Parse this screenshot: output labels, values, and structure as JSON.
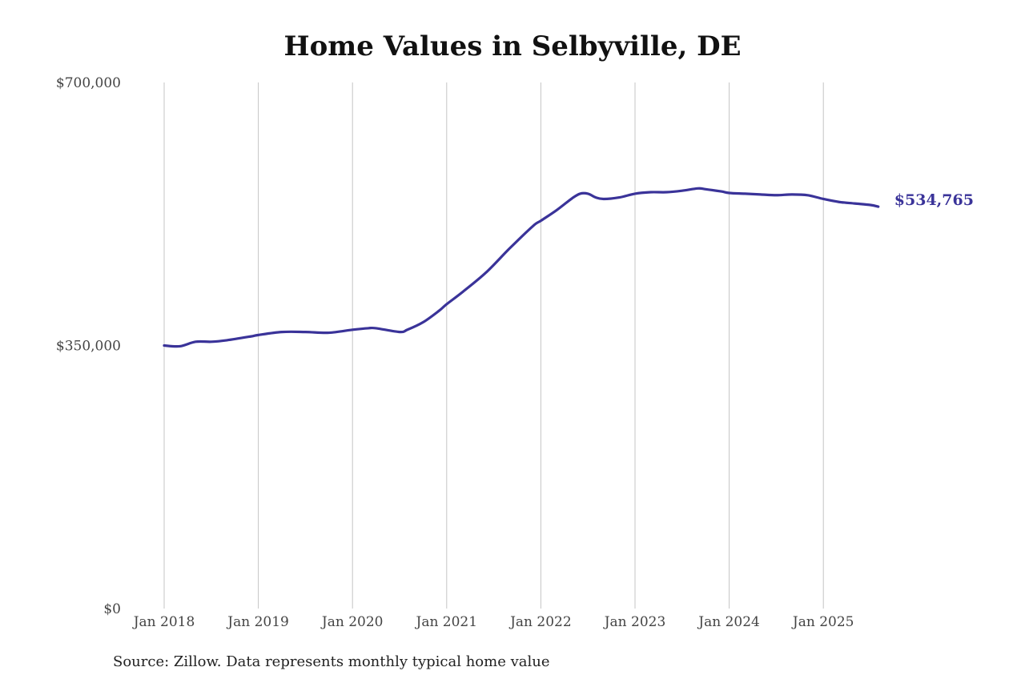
{
  "chart_data": {
    "type": "line",
    "title": "Home Values in Selbyville, DE",
    "source": "Source: Zillow. Data represents monthly typical home value",
    "xlabel": "",
    "ylabel": "",
    "ylim": [
      0,
      700000
    ],
    "yticks": [
      0,
      350000,
      700000
    ],
    "ytick_labels": [
      "$0",
      "$350,000",
      "$700,000"
    ],
    "xticks": [
      "2018-01",
      "2019-01",
      "2020-01",
      "2021-01",
      "2022-01",
      "2023-01",
      "2024-01",
      "2025-01"
    ],
    "xtick_labels": [
      "Jan 2018",
      "Jan 2019",
      "Jan 2020",
      "Jan 2021",
      "Jan 2022",
      "Jan 2023",
      "Jan 2024",
      "Jan 2025"
    ],
    "xlim": [
      "2018-01",
      "2025-08"
    ],
    "grid": "vertical",
    "line_color": "#3a3399",
    "end_label": "$534,765",
    "series": [
      {
        "points": [
          [
            "2018-01",
            350000
          ],
          [
            "2018-03",
            349000
          ],
          [
            "2018-05",
            355000
          ],
          [
            "2018-07",
            355000
          ],
          [
            "2018-09",
            357000
          ],
          [
            "2018-12",
            362000
          ],
          [
            "2019-01",
            364000
          ],
          [
            "2019-04",
            368000
          ],
          [
            "2019-07",
            368000
          ],
          [
            "2019-10",
            367000
          ],
          [
            "2020-01",
            371000
          ],
          [
            "2020-03",
            373000
          ],
          [
            "2020-04",
            373000
          ],
          [
            "2020-07",
            368000
          ],
          [
            "2020-08",
            371000
          ],
          [
            "2020-10",
            381000
          ],
          [
            "2020-12",
            396000
          ],
          [
            "2021-01",
            405000
          ],
          [
            "2021-03",
            421000
          ],
          [
            "2021-06",
            447000
          ],
          [
            "2021-09",
            479000
          ],
          [
            "2021-12",
            509000
          ],
          [
            "2022-01",
            516000
          ],
          [
            "2022-03",
            530000
          ],
          [
            "2022-05",
            546000
          ],
          [
            "2022-06",
            552000
          ],
          [
            "2022-07",
            552000
          ],
          [
            "2022-08",
            547000
          ],
          [
            "2022-09",
            545000
          ],
          [
            "2022-11",
            547000
          ],
          [
            "2023-01",
            552000
          ],
          [
            "2023-03",
            554000
          ],
          [
            "2023-05",
            554000
          ],
          [
            "2023-07",
            556000
          ],
          [
            "2023-09",
            559000
          ],
          [
            "2023-10",
            558000
          ],
          [
            "2023-12",
            555000
          ],
          [
            "2024-01",
            553000
          ],
          [
            "2024-03",
            552000
          ],
          [
            "2024-05",
            551000
          ],
          [
            "2024-07",
            550000
          ],
          [
            "2024-09",
            551000
          ],
          [
            "2024-11",
            550000
          ],
          [
            "2025-01",
            545000
          ],
          [
            "2025-03",
            541000
          ],
          [
            "2025-05",
            539000
          ],
          [
            "2025-07",
            537000
          ],
          [
            "2025-08",
            534765
          ]
        ]
      }
    ]
  }
}
